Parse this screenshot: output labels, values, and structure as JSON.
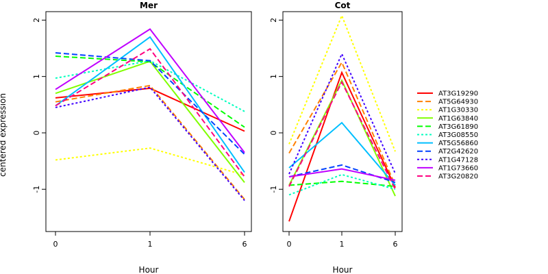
{
  "ylabel": "centered expression",
  "legend": {
    "placement": "right",
    "entries": [
      {
        "name": "AT3G19290",
        "color": "#FF0000",
        "dash": "solid"
      },
      {
        "name": "AT5G64930",
        "color": "#FF8000",
        "dash": "dashed"
      },
      {
        "name": "AT1G30330",
        "color": "#FFFF00",
        "dash": "dotted"
      },
      {
        "name": "AT1G63840",
        "color": "#80FF00",
        "dash": "solid"
      },
      {
        "name": "AT3G61890",
        "color": "#00FF00",
        "dash": "dashed"
      },
      {
        "name": "AT3G08550",
        "color": "#00FFBF",
        "dash": "dotted"
      },
      {
        "name": "AT5G56860",
        "color": "#00BFFF",
        "dash": "solid"
      },
      {
        "name": "AT2G42620",
        "color": "#0040FF",
        "dash": "dashed"
      },
      {
        "name": "AT1G47128",
        "color": "#4000FF",
        "dash": "dotted"
      },
      {
        "name": "AT1G73660",
        "color": "#BF00FF",
        "dash": "solid"
      },
      {
        "name": "AT3G20820",
        "color": "#FF0080",
        "dash": "dashed"
      }
    ]
  },
  "chart_data": [
    {
      "type": "line",
      "title": "Mer",
      "xlabel": "Hour",
      "ylabel": "centered expression",
      "x": [
        "0",
        "1",
        "6"
      ],
      "xticks": [
        "0",
        "1",
        "6"
      ],
      "yticks": [
        -1,
        0,
        1,
        2
      ],
      "ylim": [
        -1.75,
        2.15
      ],
      "series": [
        {
          "name": "AT3G19290",
          "values": [
            0.62,
            0.79,
            0.03
          ]
        },
        {
          "name": "AT5G64930",
          "values": [
            0.55,
            0.84,
            -1.18
          ]
        },
        {
          "name": "AT1G30330",
          "values": [
            -0.48,
            -0.27,
            -0.75
          ]
        },
        {
          "name": "AT1G63840",
          "values": [
            0.7,
            1.27,
            -0.88
          ]
        },
        {
          "name": "AT3G61890",
          "values": [
            1.36,
            1.26,
            0.1
          ]
        },
        {
          "name": "AT3G08550",
          "values": [
            0.97,
            1.28,
            0.38
          ]
        },
        {
          "name": "AT5G56860",
          "values": [
            0.48,
            1.7,
            -0.7
          ]
        },
        {
          "name": "AT2G42620",
          "values": [
            1.42,
            1.28,
            -0.38
          ]
        },
        {
          "name": "AT1G47128",
          "values": [
            0.45,
            0.81,
            -1.2
          ]
        },
        {
          "name": "AT1G73660",
          "values": [
            0.77,
            1.84,
            -0.35
          ]
        },
        {
          "name": "AT3G20820",
          "values": [
            0.48,
            1.49,
            -0.78
          ]
        }
      ]
    },
    {
      "type": "line",
      "title": "Cot",
      "xlabel": "Hour",
      "x": [
        "0",
        "1",
        "6"
      ],
      "xticks": [
        "0",
        "1",
        "6"
      ],
      "yticks": [
        -1,
        0,
        1,
        2
      ],
      "ylim": [
        -1.75,
        2.15
      ],
      "series": [
        {
          "name": "AT3G19290",
          "values": [
            -1.57,
            1.07,
            -0.97
          ]
        },
        {
          "name": "AT5G64930",
          "values": [
            -0.36,
            1.25,
            -0.93
          ]
        },
        {
          "name": "AT1G30330",
          "values": [
            -0.2,
            2.08,
            -0.33
          ]
        },
        {
          "name": "AT1G63840",
          "values": [
            -0.93,
            0.93,
            -1.12
          ]
        },
        {
          "name": "AT3G61890",
          "values": [
            -0.93,
            -0.86,
            -0.95
          ]
        },
        {
          "name": "AT3G08550",
          "values": [
            -1.1,
            -0.74,
            -1.0
          ]
        },
        {
          "name": "AT5G56860",
          "values": [
            -0.62,
            0.18,
            -0.93
          ]
        },
        {
          "name": "AT2G42620",
          "values": [
            -0.78,
            -0.57,
            -0.88
          ]
        },
        {
          "name": "AT1G47128",
          "values": [
            -0.73,
            1.4,
            -0.72
          ]
        },
        {
          "name": "AT1G73660",
          "values": [
            -0.78,
            -0.64,
            -0.84
          ]
        },
        {
          "name": "AT3G20820",
          "values": [
            -0.95,
            0.9,
            -1.0
          ]
        }
      ]
    }
  ]
}
